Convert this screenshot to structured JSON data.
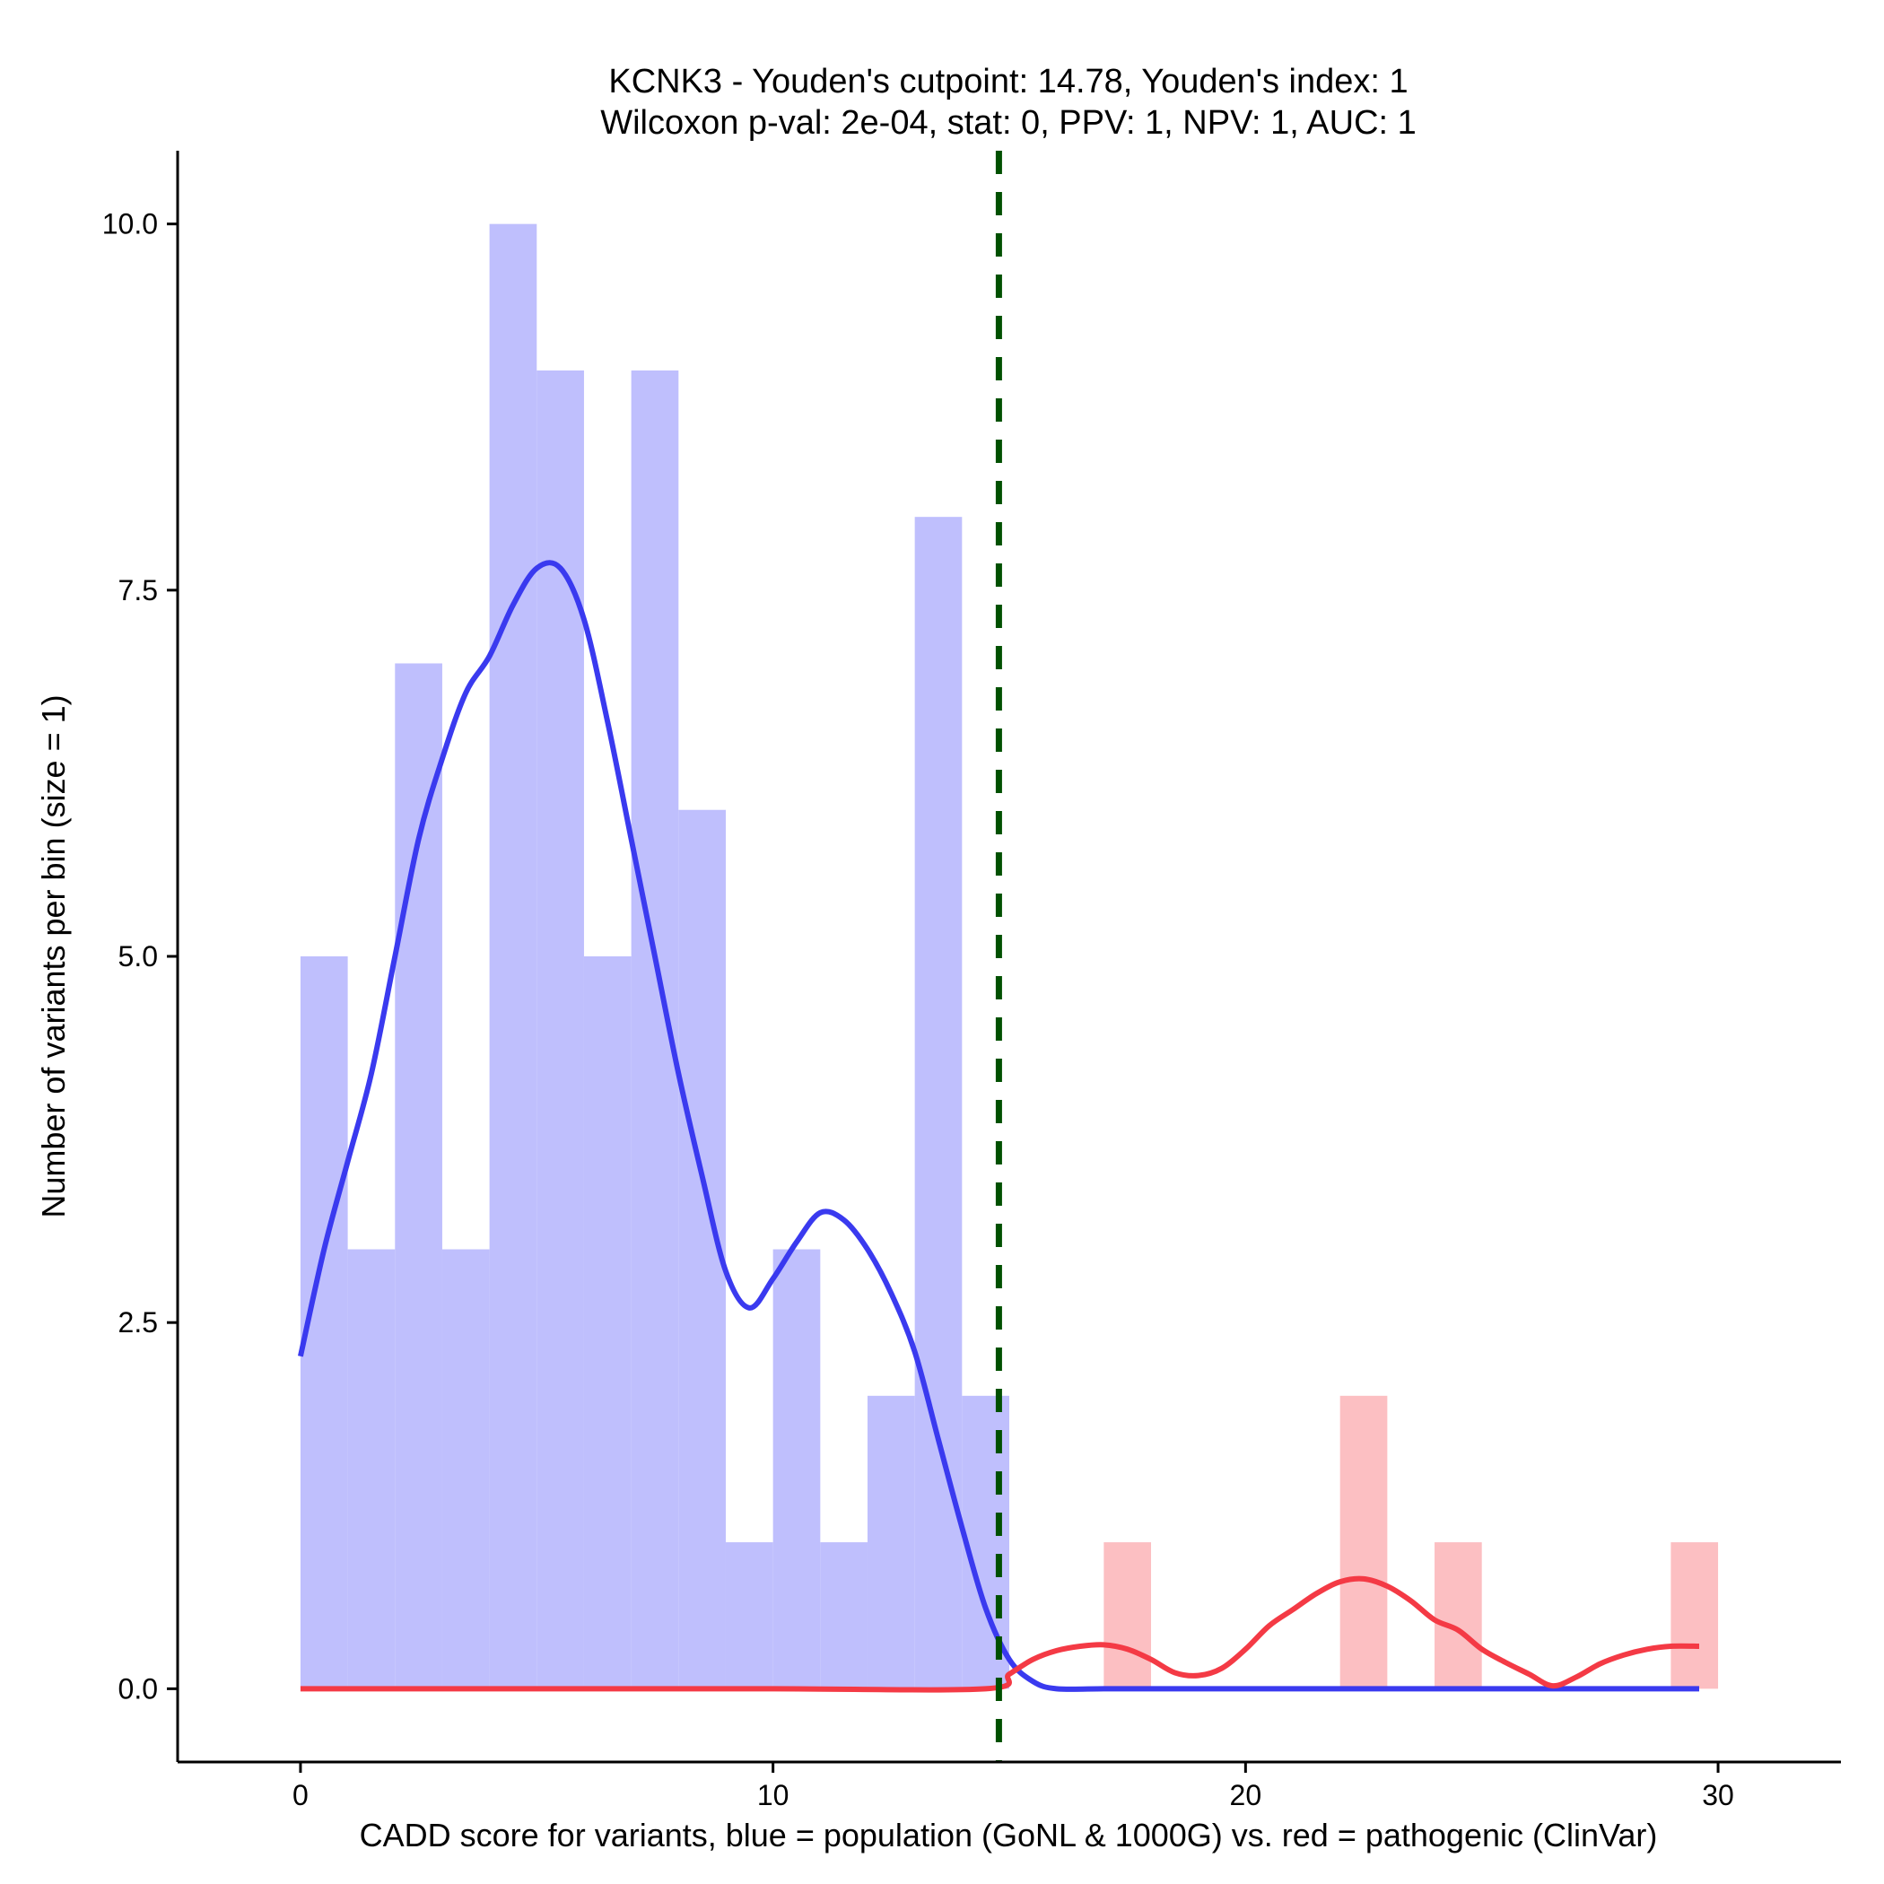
{
  "chart_data": {
    "type": "bar",
    "title_lines": [
      "KCNK3 - Youden's cutpoint: 14.78, Youden's index: 1",
      "Wilcoxon p-val: 2e-04, stat: 0, PPV: 1, NPV: 1, AUC: 1"
    ],
    "xlabel": "CADD score for variants, blue = population (GoNL & 1000G) vs. red = pathogenic (ClinVar)",
    "ylabel": "Number of variants per bin (size = 1)",
    "xlim": [
      -2.6,
      32.6
    ],
    "ylim": [
      -0.5,
      10.5
    ],
    "x_ticks": [
      0,
      10,
      20,
      30
    ],
    "x_tick_labels": [
      "0",
      "10",
      "20",
      "30"
    ],
    "y_ticks": [
      0,
      2.5,
      5,
      7.5,
      10
    ],
    "y_tick_labels": [
      "0.0",
      "2.5",
      "5.0",
      "7.5",
      "10.0"
    ],
    "bin_width": 1,
    "colors": {
      "population_bar": "#bfbffd",
      "pathogenic_bar": "#fcbfc2",
      "population_line": "#3a3aef",
      "pathogenic_line": "#f43a45",
      "cutpoint_line": "#005000"
    },
    "cutpoint": 14.78,
    "series": [
      {
        "kind": "histogram",
        "color_key": "population_bar",
        "bins": [
          [
            0,
            5
          ],
          [
            1,
            3
          ],
          [
            2,
            7
          ],
          [
            3,
            3
          ],
          [
            4,
            10
          ],
          [
            5,
            9
          ],
          [
            6,
            5
          ],
          [
            7,
            9
          ],
          [
            8,
            6
          ],
          [
            9,
            1
          ],
          [
            10,
            3
          ],
          [
            11,
            1
          ],
          [
            12,
            2
          ],
          [
            13,
            8
          ],
          [
            14,
            2
          ]
        ]
      },
      {
        "kind": "histogram",
        "color_key": "pathogenic_bar",
        "bins": [
          [
            17,
            1
          ],
          [
            22,
            2
          ],
          [
            24,
            1
          ],
          [
            29,
            1
          ]
        ]
      },
      {
        "kind": "density",
        "color_key": "population_line",
        "points": [
          [
            0,
            2.27
          ],
          [
            0.5,
            3.0
          ],
          [
            1,
            3.6
          ],
          [
            1.5,
            4.2
          ],
          [
            2,
            5.0
          ],
          [
            2.5,
            5.8
          ],
          [
            3,
            6.35
          ],
          [
            3.5,
            6.8
          ],
          [
            4,
            7.05
          ],
          [
            4.5,
            7.4
          ],
          [
            5,
            7.65
          ],
          [
            5.5,
            7.65
          ],
          [
            6,
            7.3
          ],
          [
            6.5,
            6.6
          ],
          [
            7,
            5.8
          ],
          [
            7.5,
            5.0
          ],
          [
            8,
            4.2
          ],
          [
            8.5,
            3.5
          ],
          [
            9,
            2.85
          ],
          [
            9.5,
            2.6
          ],
          [
            10,
            2.8
          ],
          [
            10.5,
            3.05
          ],
          [
            11,
            3.25
          ],
          [
            11.5,
            3.2
          ],
          [
            12,
            3.0
          ],
          [
            12.5,
            2.7
          ],
          [
            13,
            2.3
          ],
          [
            13.5,
            1.7
          ],
          [
            14,
            1.1
          ],
          [
            14.5,
            0.55
          ],
          [
            15,
            0.2
          ],
          [
            15.5,
            0.05
          ],
          [
            16,
            0
          ],
          [
            17,
            0
          ],
          [
            18,
            0
          ],
          [
            19,
            0
          ],
          [
            20,
            0
          ],
          [
            22,
            0
          ],
          [
            24,
            0
          ],
          [
            26,
            0
          ],
          [
            28,
            0
          ],
          [
            29.6,
            0
          ]
        ]
      },
      {
        "kind": "density",
        "color_key": "pathogenic_line",
        "points": [
          [
            0,
            0
          ],
          [
            5,
            0
          ],
          [
            10,
            0
          ],
          [
            14.5,
            0
          ],
          [
            15,
            0.1
          ],
          [
            15.5,
            0.2
          ],
          [
            16,
            0.26
          ],
          [
            16.5,
            0.29
          ],
          [
            17,
            0.3
          ],
          [
            17.5,
            0.27
          ],
          [
            18,
            0.2
          ],
          [
            18.5,
            0.11
          ],
          [
            19,
            0.09
          ],
          [
            19.5,
            0.14
          ],
          [
            20,
            0.27
          ],
          [
            20.5,
            0.43
          ],
          [
            21,
            0.54
          ],
          [
            21.5,
            0.65
          ],
          [
            22,
            0.73
          ],
          [
            22.5,
            0.75
          ],
          [
            23,
            0.7
          ],
          [
            23.5,
            0.6
          ],
          [
            24,
            0.47
          ],
          [
            24.5,
            0.4
          ],
          [
            25,
            0.27
          ],
          [
            25.5,
            0.18
          ],
          [
            26,
            0.1
          ],
          [
            26.5,
            0.02
          ],
          [
            27,
            0.08
          ],
          [
            27.5,
            0.17
          ],
          [
            28,
            0.23
          ],
          [
            28.5,
            0.27
          ],
          [
            29,
            0.29
          ],
          [
            29.6,
            0.29
          ]
        ]
      }
    ]
  }
}
